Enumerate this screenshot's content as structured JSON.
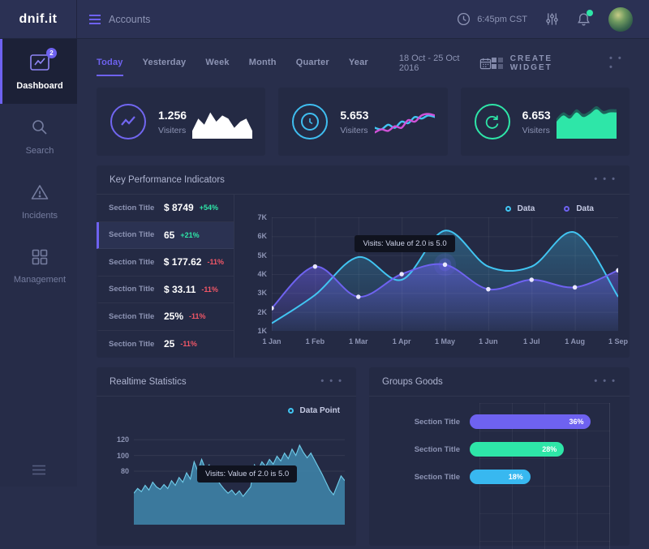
{
  "theme": {
    "purple": "#6e62f0",
    "cyan": "#41c5f2",
    "green": "#2ee6a8",
    "magenta": "#cf52d8",
    "red": "#f25767",
    "white": "#ffffff"
  },
  "icons": {
    "more": "• • •"
  },
  "topbar": {
    "logo": "dnif.it",
    "menu_label": "Accounts",
    "time": "6:45pm CST"
  },
  "sidebar": {
    "items": [
      {
        "label": "Dashboard",
        "badge": "2",
        "active": true
      },
      {
        "label": "Search",
        "active": false
      },
      {
        "label": "Incidents",
        "active": false
      },
      {
        "label": "Management",
        "active": false
      }
    ]
  },
  "toolbar": {
    "tabs": [
      "Today",
      "Yesterday",
      "Week",
      "Month",
      "Quarter",
      "Year"
    ],
    "active_tab": "Today",
    "date_range": "18 Oct - 25 Oct 2016",
    "create_widget": "CREATE WIDGET"
  },
  "stats": [
    {
      "value": "1.256",
      "label": "Visiters",
      "spark": {
        "type": "area",
        "color": "#ffffff",
        "values": [
          2,
          6,
          4,
          8,
          5,
          7,
          6,
          3,
          5,
          6,
          2
        ]
      }
    },
    {
      "value": "5.653",
      "label": "Visiters",
      "spark": {
        "type": "lines",
        "series": [
          {
            "color": "#41c5f2",
            "values": [
              3,
              2.5,
              4,
              3,
              5,
              4.5,
              6.5,
              6,
              7,
              6.5
            ]
          },
          {
            "color": "#cf52d8",
            "values": [
              1.5,
              2.5,
              2,
              3.5,
              3,
              5.5,
              5,
              7,
              7.5,
              7
            ]
          }
        ]
      }
    },
    {
      "value": "6.653",
      "label": "Visiters",
      "spark": {
        "type": "area2",
        "back": {
          "color": "#1d6e60",
          "values": [
            6,
            8,
            7,
            9,
            7.5,
            8.5,
            10,
            8.5,
            9,
            9
          ]
        },
        "front": {
          "color": "#2ee6a8",
          "values": [
            5,
            7,
            6,
            8,
            6.5,
            7.5,
            9,
            7.5,
            8,
            8
          ]
        }
      }
    }
  ],
  "kpi": {
    "title": "Key Performance Indicators",
    "rows": [
      {
        "label": "Section Title",
        "value": "$ 8749",
        "delta": "+54%",
        "dir": "up",
        "highlight": false
      },
      {
        "label": "Section Title",
        "value": "65",
        "delta": "+21%",
        "dir": "up",
        "highlight": true
      },
      {
        "label": "Section Title",
        "value": "$ 177.62",
        "delta": "-11%",
        "dir": "down",
        "highlight": false
      },
      {
        "label": "Section Title",
        "value": "$ 33.11",
        "delta": "-11%",
        "dir": "down",
        "highlight": false
      },
      {
        "label": "Section Title",
        "value": "25%",
        "delta": "-11%",
        "dir": "down",
        "highlight": false
      },
      {
        "label": "Section Title",
        "value": "25",
        "delta": "-11%",
        "dir": "down",
        "highlight": false
      }
    ],
    "legend": [
      {
        "label": "Data",
        "color": "#41c5f2"
      },
      {
        "label": "Data",
        "color": "#6e62f0"
      }
    ],
    "tooltip": "Visits: Value of 2.0 is 5.0"
  },
  "realtime": {
    "title": "Realtime Statistics",
    "legend_label": "Data Point",
    "legend_color": "#41c5f2",
    "tooltip": "Visits: Value of 2.0 is 5.0"
  },
  "groups": {
    "title": "Groups Goods",
    "bars": [
      {
        "label": "Section Title",
        "value": 36,
        "pct_label": "36%",
        "color": "#6e62f0"
      },
      {
        "label": "Section Title",
        "value": 28,
        "pct_label": "28%",
        "color": "#2ee6a8"
      },
      {
        "label": "Section Title",
        "value": 18,
        "pct_label": "18%",
        "color": "#38b8f0"
      }
    ]
  },
  "chart_data": [
    {
      "id": "kpi-line",
      "type": "line",
      "title": "Key Performance Indicators",
      "x_labels": [
        "1 Jan",
        "1 Feb",
        "1 Mar",
        "1 Apr",
        "1 May",
        "1 Jun",
        "1 Jul",
        "1 Aug",
        "1 Sep"
      ],
      "ylim": [
        1000,
        7000
      ],
      "yticks": [
        7000,
        6000,
        5000,
        4000,
        3000,
        2000,
        1000
      ],
      "ytick_labels": [
        "7K",
        "6K",
        "5K",
        "4K",
        "3K",
        "2K",
        "1K"
      ],
      "grid": true,
      "legend_position": "top-right",
      "series": [
        {
          "name": "Data",
          "color": "#41c5f2",
          "values": [
            1400,
            2900,
            4900,
            3700,
            6300,
            4400,
            4400,
            6200,
            2800
          ],
          "markers": false
        },
        {
          "name": "Data",
          "color": "#6e62f0",
          "values": [
            2200,
            4400,
            2800,
            4000,
            4500,
            3200,
            3700,
            3300,
            4200
          ],
          "markers": true,
          "highlight_index": 4
        }
      ],
      "annotation": "Visits: Value of 2.0 is 5.0"
    },
    {
      "id": "realtime-area",
      "type": "area",
      "title": "Realtime Statistics",
      "color": "#3f87ad",
      "stroke": "#6ecbe8",
      "ylim": [
        12,
        146
      ],
      "yticks": [
        120,
        100,
        80
      ],
      "ytick_labels": [
        "120",
        "100",
        "80"
      ],
      "grid": true,
      "values": [
        52,
        58,
        54,
        62,
        56,
        66,
        60,
        57,
        63,
        58,
        68,
        62,
        72,
        66,
        78,
        70,
        92,
        80,
        95,
        83,
        88,
        76,
        70,
        63,
        57,
        52,
        56,
        50,
        55,
        48,
        54,
        60,
        88,
        82,
        92,
        86,
        95,
        89,
        99,
        93,
        103,
        96,
        108,
        100,
        113,
        104,
        97,
        103,
        94,
        85,
        76,
        66,
        56,
        50,
        62,
        74,
        68
      ],
      "annotation": "Visits: Value of 2.0 is 5.0"
    },
    {
      "id": "groups-bars",
      "type": "bar",
      "title": "Groups Goods",
      "categories": [
        "Section Title",
        "Section Title",
        "Section Title"
      ],
      "values": [
        36,
        28,
        18
      ],
      "value_labels": [
        "36%",
        "28%",
        "18%"
      ],
      "colors": [
        "#6e62f0",
        "#2ee6a8",
        "#38b8f0"
      ],
      "xlim": [
        0,
        100
      ],
      "grid": true
    }
  ]
}
